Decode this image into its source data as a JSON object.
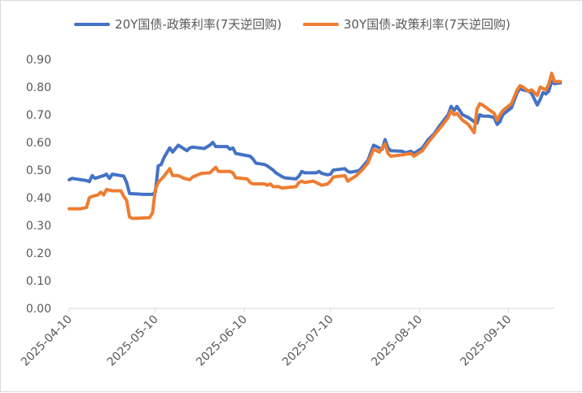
{
  "chart_data": {
    "type": "line",
    "title": "",
    "xlabel": "",
    "ylabel": "",
    "ylim": [
      0,
      0.9
    ],
    "yticks": [
      "0.00",
      "0.10",
      "0.20",
      "0.30",
      "0.40",
      "0.50",
      "0.60",
      "0.70",
      "0.80",
      "0.90"
    ],
    "x_range": [
      "2025-04-10",
      "2025-09-26"
    ],
    "xticks": [
      "2025-04-10",
      "2025-05-10",
      "2025-06-10",
      "2025-07-10",
      "2025-08-10",
      "2025-09-10"
    ],
    "grid": false,
    "legend_position": "top",
    "series": [
      {
        "name": "20Y国债-政策利率(7天逆回购)",
        "color": "#4472C4",
        "points": [
          [
            "2025-04-10",
            0.465
          ],
          [
            "2025-04-11",
            0.47
          ],
          [
            "2025-04-14",
            0.465
          ],
          [
            "2025-04-16",
            0.462
          ],
          [
            "2025-04-17",
            0.458
          ],
          [
            "2025-04-18",
            0.48
          ],
          [
            "2025-04-19",
            0.47
          ],
          [
            "2025-04-22",
            0.48
          ],
          [
            "2025-04-23",
            0.485
          ],
          [
            "2025-04-24",
            0.47
          ],
          [
            "2025-04-25",
            0.485
          ],
          [
            "2025-04-28",
            0.48
          ],
          [
            "2025-04-29",
            0.478
          ],
          [
            "2025-04-30",
            0.455
          ],
          [
            "2025-05-01",
            0.415
          ],
          [
            "2025-05-06",
            0.412
          ],
          [
            "2025-05-08",
            0.412
          ],
          [
            "2025-05-09",
            0.412
          ],
          [
            "2025-05-10",
            0.42
          ],
          [
            "2025-05-11",
            0.515
          ],
          [
            "2025-05-12",
            0.52
          ],
          [
            "2025-05-13",
            0.545
          ],
          [
            "2025-05-15",
            0.58
          ],
          [
            "2025-05-16",
            0.565
          ],
          [
            "2025-05-18",
            0.59
          ],
          [
            "2025-05-21",
            0.57
          ],
          [
            "2025-05-22",
            0.58
          ],
          [
            "2025-05-23",
            0.583
          ],
          [
            "2025-05-27",
            0.578
          ],
          [
            "2025-05-29",
            0.59
          ],
          [
            "2025-05-30",
            0.6
          ],
          [
            "2025-05-31",
            0.585
          ],
          [
            "2025-06-04",
            0.585
          ],
          [
            "2025-06-05",
            0.575
          ],
          [
            "2025-06-06",
            0.58
          ],
          [
            "2025-06-07",
            0.56
          ],
          [
            "2025-06-12",
            0.55
          ],
          [
            "2025-06-13",
            0.54
          ],
          [
            "2025-06-14",
            0.525
          ],
          [
            "2025-06-17",
            0.52
          ],
          [
            "2025-06-18",
            0.515
          ],
          [
            "2025-06-20",
            0.5
          ],
          [
            "2025-06-21",
            0.49
          ],
          [
            "2025-06-23",
            0.477
          ],
          [
            "2025-06-24",
            0.472
          ],
          [
            "2025-06-26",
            0.47
          ],
          [
            "2025-06-28",
            0.468
          ],
          [
            "2025-06-29",
            0.478
          ],
          [
            "2025-06-30",
            0.495
          ],
          [
            "2025-07-01",
            0.49
          ],
          [
            "2025-07-05",
            0.49
          ],
          [
            "2025-07-06",
            0.495
          ],
          [
            "2025-07-07",
            0.488
          ],
          [
            "2025-07-08",
            0.485
          ],
          [
            "2025-07-09",
            0.483
          ],
          [
            "2025-07-10",
            0.485
          ],
          [
            "2025-07-11",
            0.5
          ],
          [
            "2025-07-15",
            0.505
          ],
          [
            "2025-07-16",
            0.495
          ],
          [
            "2025-07-17",
            0.492
          ],
          [
            "2025-07-20",
            0.498
          ],
          [
            "2025-07-21",
            0.51
          ],
          [
            "2025-07-23",
            0.535
          ],
          [
            "2025-07-25",
            0.59
          ],
          [
            "2025-07-28",
            0.575
          ],
          [
            "2025-07-29",
            0.61
          ],
          [
            "2025-07-30",
            0.58
          ],
          [
            "2025-07-31",
            0.57
          ],
          [
            "2025-08-04",
            0.568
          ],
          [
            "2025-08-05",
            0.562
          ],
          [
            "2025-08-07",
            0.568
          ],
          [
            "2025-08-08",
            0.56
          ],
          [
            "2025-08-11",
            0.58
          ],
          [
            "2025-08-13",
            0.61
          ],
          [
            "2025-08-15",
            0.63
          ],
          [
            "2025-08-17",
            0.66
          ],
          [
            "2025-08-20",
            0.7
          ],
          [
            "2025-08-21",
            0.73
          ],
          [
            "2025-08-22",
            0.715
          ],
          [
            "2025-08-23",
            0.73
          ],
          [
            "2025-08-25",
            0.7
          ],
          [
            "2025-08-27",
            0.69
          ],
          [
            "2025-08-29",
            0.675
          ],
          [
            "2025-08-30",
            0.67
          ],
          [
            "2025-08-31",
            0.7
          ],
          [
            "2025-09-01",
            0.695
          ],
          [
            "2025-09-03",
            0.695
          ],
          [
            "2025-09-05",
            0.69
          ],
          [
            "2025-09-06",
            0.665
          ],
          [
            "2025-09-07",
            0.675
          ],
          [
            "2025-09-08",
            0.7
          ],
          [
            "2025-09-11",
            0.725
          ],
          [
            "2025-09-13",
            0.78
          ],
          [
            "2025-09-14",
            0.795
          ],
          [
            "2025-09-15",
            0.79
          ],
          [
            "2025-09-17",
            0.785
          ],
          [
            "2025-09-18",
            0.778
          ],
          [
            "2025-09-20",
            0.735
          ],
          [
            "2025-09-21",
            0.755
          ],
          [
            "2025-09-22",
            0.78
          ],
          [
            "2025-09-23",
            0.775
          ],
          [
            "2025-09-24",
            0.785
          ],
          [
            "2025-09-25",
            0.82
          ],
          [
            "2025-09-26",
            0.812
          ],
          [
            "2025-09-28",
            0.815
          ]
        ]
      },
      {
        "name": "30Y国债-政策利率(7天逆回购)",
        "color": "#ED7D31",
        "points": [
          [
            "2025-04-10",
            0.36
          ],
          [
            "2025-04-14",
            0.36
          ],
          [
            "2025-04-16",
            0.365
          ],
          [
            "2025-04-17",
            0.4
          ],
          [
            "2025-04-18",
            0.405
          ],
          [
            "2025-04-20",
            0.41
          ],
          [
            "2025-04-21",
            0.42
          ],
          [
            "2025-04-22",
            0.41
          ],
          [
            "2025-04-23",
            0.43
          ],
          [
            "2025-04-25",
            0.425
          ],
          [
            "2025-04-28",
            0.425
          ],
          [
            "2025-04-29",
            0.405
          ],
          [
            "2025-04-30",
            0.39
          ],
          [
            "2025-05-01",
            0.33
          ],
          [
            "2025-05-02",
            0.325
          ],
          [
            "2025-05-08",
            0.328
          ],
          [
            "2025-05-09",
            0.345
          ],
          [
            "2025-05-10",
            0.43
          ],
          [
            "2025-05-11",
            0.455
          ],
          [
            "2025-05-13",
            0.478
          ],
          [
            "2025-05-15",
            0.505
          ],
          [
            "2025-05-16",
            0.48
          ],
          [
            "2025-05-18",
            0.48
          ],
          [
            "2025-05-20",
            0.47
          ],
          [
            "2025-05-22",
            0.465
          ],
          [
            "2025-05-23",
            0.475
          ],
          [
            "2025-05-26",
            0.488
          ],
          [
            "2025-05-29",
            0.49
          ],
          [
            "2025-05-30",
            0.5
          ],
          [
            "2025-05-31",
            0.51
          ],
          [
            "2025-06-01",
            0.495
          ],
          [
            "2025-06-05",
            0.495
          ],
          [
            "2025-06-06",
            0.49
          ],
          [
            "2025-06-07",
            0.472
          ],
          [
            "2025-06-11",
            0.468
          ],
          [
            "2025-06-12",
            0.455
          ],
          [
            "2025-06-13",
            0.45
          ],
          [
            "2025-06-17",
            0.45
          ],
          [
            "2025-06-18",
            0.445
          ],
          [
            "2025-06-19",
            0.45
          ],
          [
            "2025-06-20",
            0.44
          ],
          [
            "2025-06-22",
            0.44
          ],
          [
            "2025-06-23",
            0.435
          ],
          [
            "2025-06-26",
            0.438
          ],
          [
            "2025-06-28",
            0.44
          ],
          [
            "2025-06-29",
            0.455
          ],
          [
            "2025-06-30",
            0.46
          ],
          [
            "2025-07-01",
            0.455
          ],
          [
            "2025-07-04",
            0.46
          ],
          [
            "2025-07-05",
            0.455
          ],
          [
            "2025-07-07",
            0.445
          ],
          [
            "2025-07-09",
            0.45
          ],
          [
            "2025-07-10",
            0.46
          ],
          [
            "2025-07-11",
            0.475
          ],
          [
            "2025-07-15",
            0.48
          ],
          [
            "2025-07-16",
            0.46
          ],
          [
            "2025-07-19",
            0.48
          ],
          [
            "2025-07-21",
            0.5
          ],
          [
            "2025-07-23",
            0.525
          ],
          [
            "2025-07-25",
            0.575
          ],
          [
            "2025-07-27",
            0.565
          ],
          [
            "2025-07-29",
            0.595
          ],
          [
            "2025-07-30",
            0.56
          ],
          [
            "2025-07-31",
            0.55
          ],
          [
            "2025-08-04",
            0.555
          ],
          [
            "2025-08-05",
            0.557
          ],
          [
            "2025-08-07",
            0.56
          ],
          [
            "2025-08-08",
            0.55
          ],
          [
            "2025-08-11",
            0.57
          ],
          [
            "2025-08-13",
            0.6
          ],
          [
            "2025-08-15",
            0.625
          ],
          [
            "2025-08-17",
            0.65
          ],
          [
            "2025-08-20",
            0.69
          ],
          [
            "2025-08-21",
            0.715
          ],
          [
            "2025-08-22",
            0.7
          ],
          [
            "2025-08-23",
            0.705
          ],
          [
            "2025-08-25",
            0.68
          ],
          [
            "2025-08-27",
            0.665
          ],
          [
            "2025-08-28",
            0.65
          ],
          [
            "2025-08-29",
            0.635
          ],
          [
            "2025-08-30",
            0.72
          ],
          [
            "2025-08-31",
            0.74
          ],
          [
            "2025-09-01",
            0.735
          ],
          [
            "2025-09-03",
            0.72
          ],
          [
            "2025-09-05",
            0.705
          ],
          [
            "2025-09-06",
            0.68
          ],
          [
            "2025-09-07",
            0.7
          ],
          [
            "2025-09-08",
            0.715
          ],
          [
            "2025-09-11",
            0.74
          ],
          [
            "2025-09-13",
            0.79
          ],
          [
            "2025-09-14",
            0.805
          ],
          [
            "2025-09-15",
            0.8
          ],
          [
            "2025-09-17",
            0.785
          ],
          [
            "2025-09-18",
            0.79
          ],
          [
            "2025-09-20",
            0.77
          ],
          [
            "2025-09-21",
            0.8
          ],
          [
            "2025-09-22",
            0.795
          ],
          [
            "2025-09-23",
            0.79
          ],
          [
            "2025-09-24",
            0.81
          ],
          [
            "2025-09-25",
            0.85
          ],
          [
            "2025-09-26",
            0.82
          ],
          [
            "2025-09-28",
            0.82
          ]
        ]
      }
    ]
  }
}
